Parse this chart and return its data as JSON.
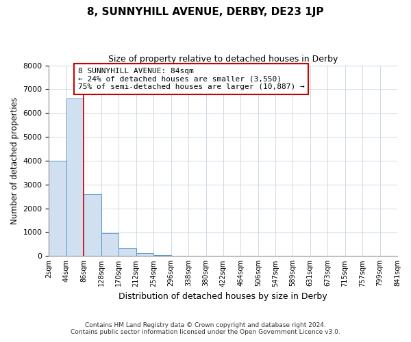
{
  "title": "8, SUNNYHILL AVENUE, DERBY, DE23 1JP",
  "subtitle": "Size of property relative to detached houses in Derby",
  "xlabel": "Distribution of detached houses by size in Derby",
  "ylabel": "Number of detached properties",
  "bar_edges": [
    2,
    44,
    86,
    128,
    170,
    212,
    254,
    296,
    338,
    380,
    422,
    464,
    506,
    547,
    589,
    631,
    673,
    715,
    757,
    799,
    841
  ],
  "bar_heights": [
    4000,
    6600,
    2600,
    950,
    320,
    120,
    50,
    0,
    0,
    0,
    0,
    0,
    0,
    0,
    0,
    0,
    0,
    0,
    0,
    0
  ],
  "tick_labels": [
    "2sqm",
    "44sqm",
    "86sqm",
    "128sqm",
    "170sqm",
    "212sqm",
    "254sqm",
    "296sqm",
    "338sqm",
    "380sqm",
    "422sqm",
    "464sqm",
    "506sqm",
    "547sqm",
    "589sqm",
    "631sqm",
    "673sqm",
    "715sqm",
    "757sqm",
    "799sqm",
    "841sqm"
  ],
  "bar_color": "#d0e0f0",
  "bar_edge_color": "#5599cc",
  "vline_x": 86,
  "vline_color": "#cc0000",
  "annotation_title": "8 SUNNYHILL AVENUE: 84sqm",
  "annotation_line1": "← 24% of detached houses are smaller (3,550)",
  "annotation_line2": "75% of semi-detached houses are larger (10,887) →",
  "annotation_box_edge": "#cc0000",
  "ylim": [
    0,
    8000
  ],
  "yticks": [
    0,
    1000,
    2000,
    3000,
    4000,
    5000,
    6000,
    7000,
    8000
  ],
  "footer1": "Contains HM Land Registry data © Crown copyright and database right 2024.",
  "footer2": "Contains public sector information licensed under the Open Government Licence v3.0.",
  "bg_color": "#ffffff",
  "plot_bg_color": "#ffffff",
  "grid_color": "#c8d4e0"
}
